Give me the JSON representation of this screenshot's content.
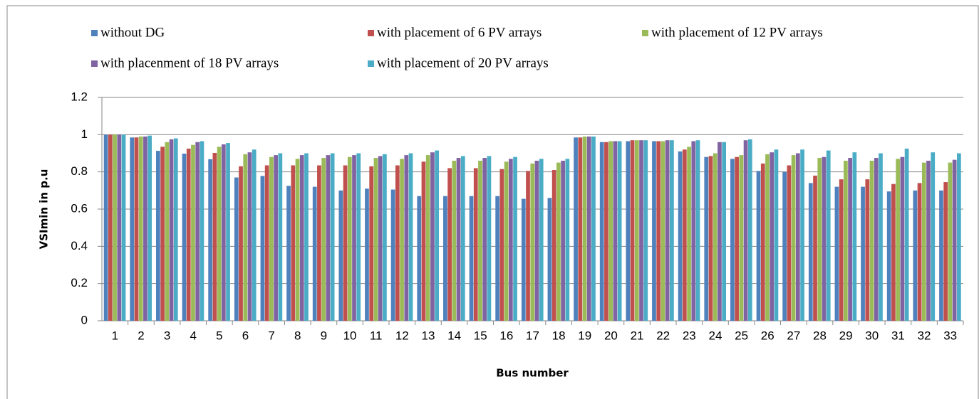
{
  "chart_data": {
    "type": "bar",
    "x_label": "Bus number",
    "y_label": "VSImin in p.u",
    "categories": [
      "1",
      "2",
      "3",
      "4",
      "5",
      "6",
      "7",
      "8",
      "9",
      "10",
      "11",
      "12",
      "13",
      "14",
      "15",
      "16",
      "17",
      "18",
      "19",
      "20",
      "21",
      "22",
      "23",
      "24",
      "25",
      "26",
      "27",
      "28",
      "29",
      "30",
      "31",
      "32",
      "33"
    ],
    "series": [
      {
        "name": "without DG",
        "color": "#4f81bd",
        "values": [
          1,
          0.985,
          0.913,
          0.898,
          0.868,
          0.77,
          0.778,
          0.725,
          0.72,
          0.7,
          0.71,
          0.705,
          0.67,
          0.67,
          0.67,
          0.67,
          0.655,
          0.66,
          0.985,
          0.96,
          0.965,
          0.965,
          0.91,
          0.88,
          0.87,
          0.805,
          0.8,
          0.74,
          0.72,
          0.72,
          0.695,
          0.7,
          0.7
        ]
      },
      {
        "name": "with placement of 6 PV arrays",
        "color": "#c0504d",
        "values": [
          1,
          0.985,
          0.935,
          0.925,
          0.902,
          0.83,
          0.835,
          0.835,
          0.835,
          0.835,
          0.83,
          0.835,
          0.855,
          0.82,
          0.82,
          0.815,
          0.805,
          0.81,
          0.985,
          0.96,
          0.97,
          0.965,
          0.92,
          0.885,
          0.88,
          0.845,
          0.835,
          0.78,
          0.76,
          0.76,
          0.735,
          0.74,
          0.745
        ]
      },
      {
        "name": "with placement of 12 PV arrays",
        "color": "#9bbb59",
        "values": [
          1,
          0.99,
          0.96,
          0.945,
          0.935,
          0.895,
          0.88,
          0.87,
          0.875,
          0.88,
          0.875,
          0.87,
          0.89,
          0.86,
          0.86,
          0.855,
          0.845,
          0.85,
          0.99,
          0.965,
          0.97,
          0.965,
          0.935,
          0.9,
          0.89,
          0.895,
          0.89,
          0.875,
          0.86,
          0.86,
          0.87,
          0.85,
          0.85
        ]
      },
      {
        "name": "with placenment of 18 PV arrays",
        "color": "#8064a2",
        "values": [
          1,
          0.99,
          0.975,
          0.96,
          0.948,
          0.905,
          0.89,
          0.89,
          0.89,
          0.89,
          0.885,
          0.89,
          0.905,
          0.875,
          0.875,
          0.87,
          0.86,
          0.86,
          0.99,
          0.965,
          0.97,
          0.97,
          0.965,
          0.96,
          0.97,
          0.905,
          0.9,
          0.88,
          0.875,
          0.875,
          0.88,
          0.86,
          0.865
        ]
      },
      {
        "name": "with placement of 20 PV arrays",
        "color": "#4bacc6",
        "values": [
          1,
          0.995,
          0.98,
          0.965,
          0.955,
          0.92,
          0.9,
          0.9,
          0.9,
          0.9,
          0.895,
          0.9,
          0.915,
          0.885,
          0.885,
          0.88,
          0.87,
          0.87,
          0.99,
          0.965,
          0.97,
          0.97,
          0.97,
          0.96,
          0.975,
          0.92,
          0.92,
          0.915,
          0.905,
          0.9,
          0.925,
          0.905,
          0.9
        ]
      }
    ],
    "ylim": [
      0,
      1.2
    ],
    "yticks": [
      0,
      0.2,
      0.4,
      0.6,
      0.8,
      1,
      1.2
    ],
    "grid": true
  }
}
